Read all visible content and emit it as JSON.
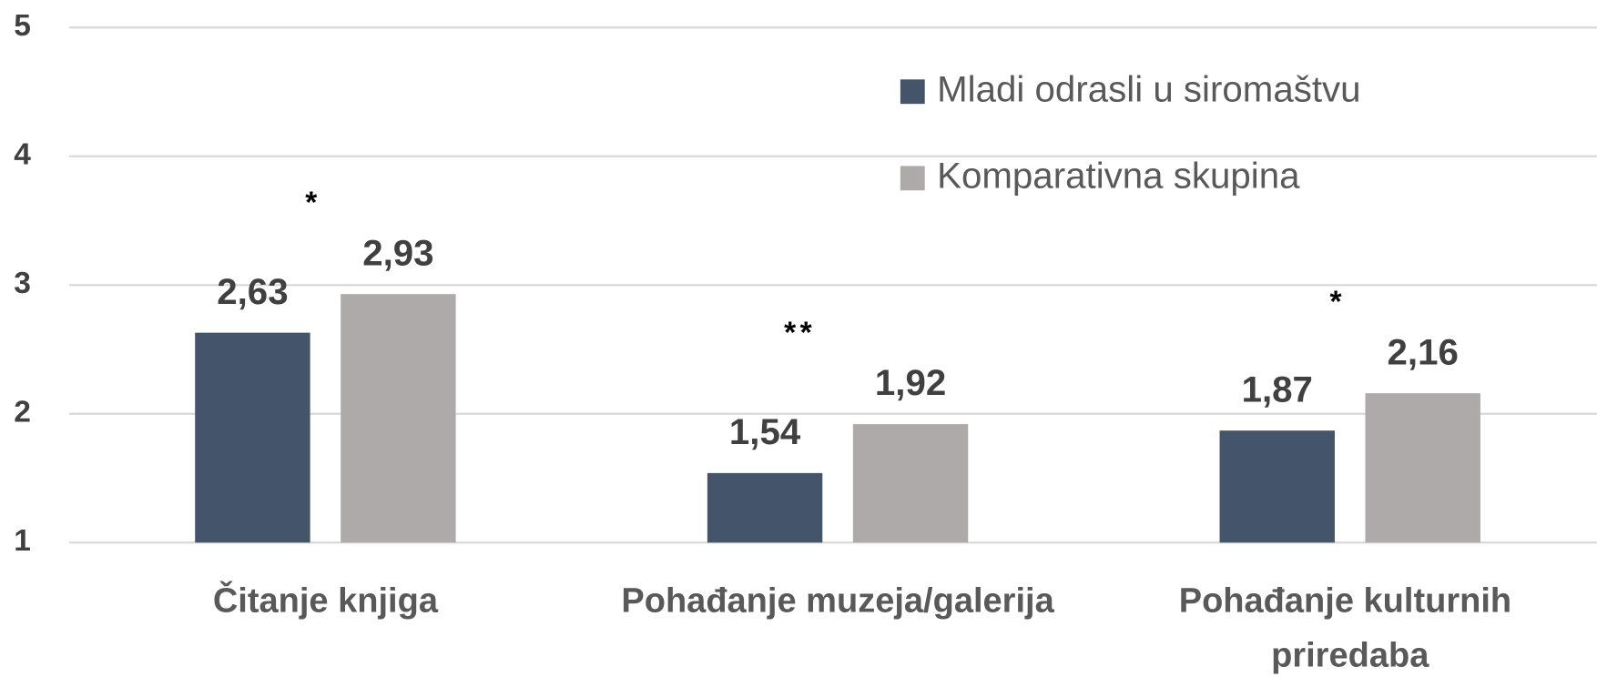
{
  "chart_data": {
    "type": "bar",
    "categories": [
      "Čitanje knjiga",
      "Pohađanje muzeja/galerija",
      "Pohađanje kulturnih priredaba"
    ],
    "series": [
      {
        "name": "Mladi odrasli u siromaštvu",
        "color": "#44546a",
        "values": [
          2.63,
          1.54,
          1.87
        ],
        "value_labels": [
          "2,63",
          "1,54",
          "1,87"
        ]
      },
      {
        "name": "Komparativna skupina",
        "color": "#aeaaaa",
        "values": [
          2.93,
          1.92,
          2.16
        ],
        "value_labels": [
          "2,93",
          "1,92",
          "2,16"
        ]
      }
    ],
    "annotations": [
      "*",
      "**",
      "*"
    ],
    "ylim": [
      1,
      5
    ],
    "yticks": [
      1,
      2,
      3,
      4,
      5
    ],
    "grid": true,
    "legend": "top-right"
  }
}
